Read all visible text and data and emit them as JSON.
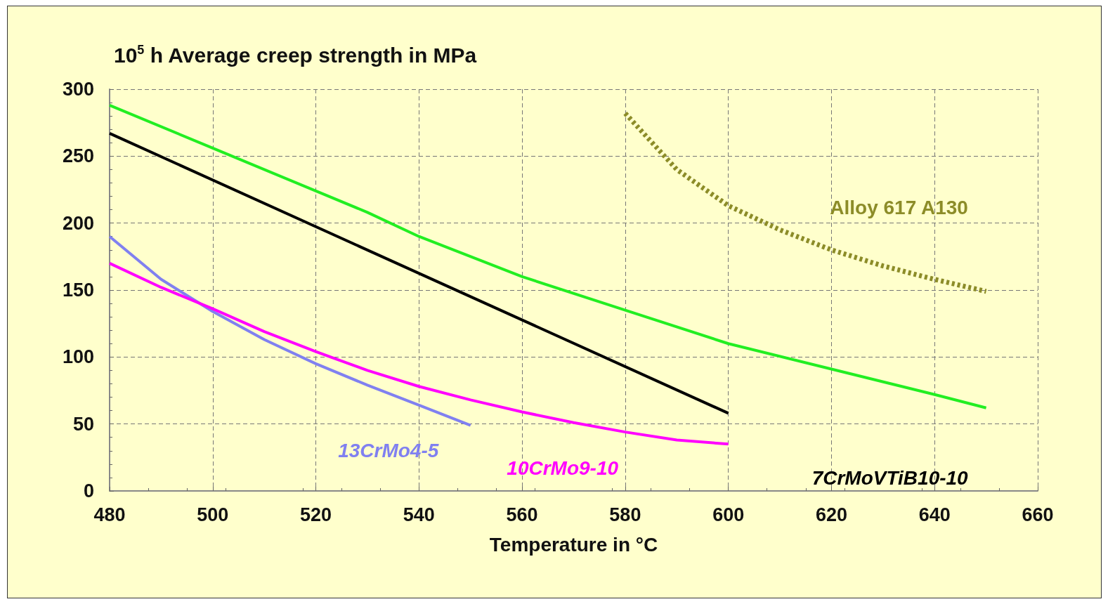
{
  "chart_data": {
    "type": "line",
    "title": "10$^{5}$ h Average creep strength in MPa",
    "xlabel": "Temperature in °C",
    "xlim": [
      480,
      660
    ],
    "xticks": [
      480,
      500,
      520,
      540,
      560,
      580,
      600,
      620,
      640,
      660
    ],
    "ylim": [
      0,
      300
    ],
    "yticks": [
      0,
      50,
      100,
      150,
      200,
      250,
      300
    ],
    "grid": true,
    "marker": "none",
    "line_style": "solid",
    "series": [
      {
        "name": "13CrMo4-5",
        "color": "#8080f0",
        "x": [
          480,
          490,
          500,
          510,
          520,
          530,
          540,
          550
        ],
        "values": [
          190,
          158,
          134,
          113,
          95,
          79,
          64,
          49
        ]
      },
      {
        "name": "10CrMo9-10",
        "color": "#ff00ff",
        "x": [
          480,
          490,
          500,
          510,
          520,
          530,
          540,
          550,
          560,
          570,
          580,
          590,
          600
        ],
        "values": [
          170,
          152,
          136,
          119,
          104,
          90,
          78,
          68,
          59,
          51,
          44,
          38,
          35
        ]
      },
      {
        "name": "7CrMoVTiB10-10",
        "color": "#000000",
        "x": [
          480,
          600
        ],
        "values": [
          267,
          58
        ]
      },
      {
        "name": "Alloy 617 A130",
        "color": "#8c8c28",
        "line_style": "dotted",
        "x": [
          580,
          590,
          600,
          610,
          620,
          630,
          640,
          650
        ],
        "values": [
          282,
          240,
          213,
          195,
          180,
          168,
          158,
          149
        ]
      },
      {
        "color": "#22ee22",
        "x": [
          480,
          500,
          520,
          530,
          540,
          560,
          580,
          600,
          620,
          640,
          650
        ],
        "values": [
          288,
          256,
          224,
          208,
          190,
          160,
          135,
          110,
          91,
          72,
          62
        ]
      }
    ]
  }
}
